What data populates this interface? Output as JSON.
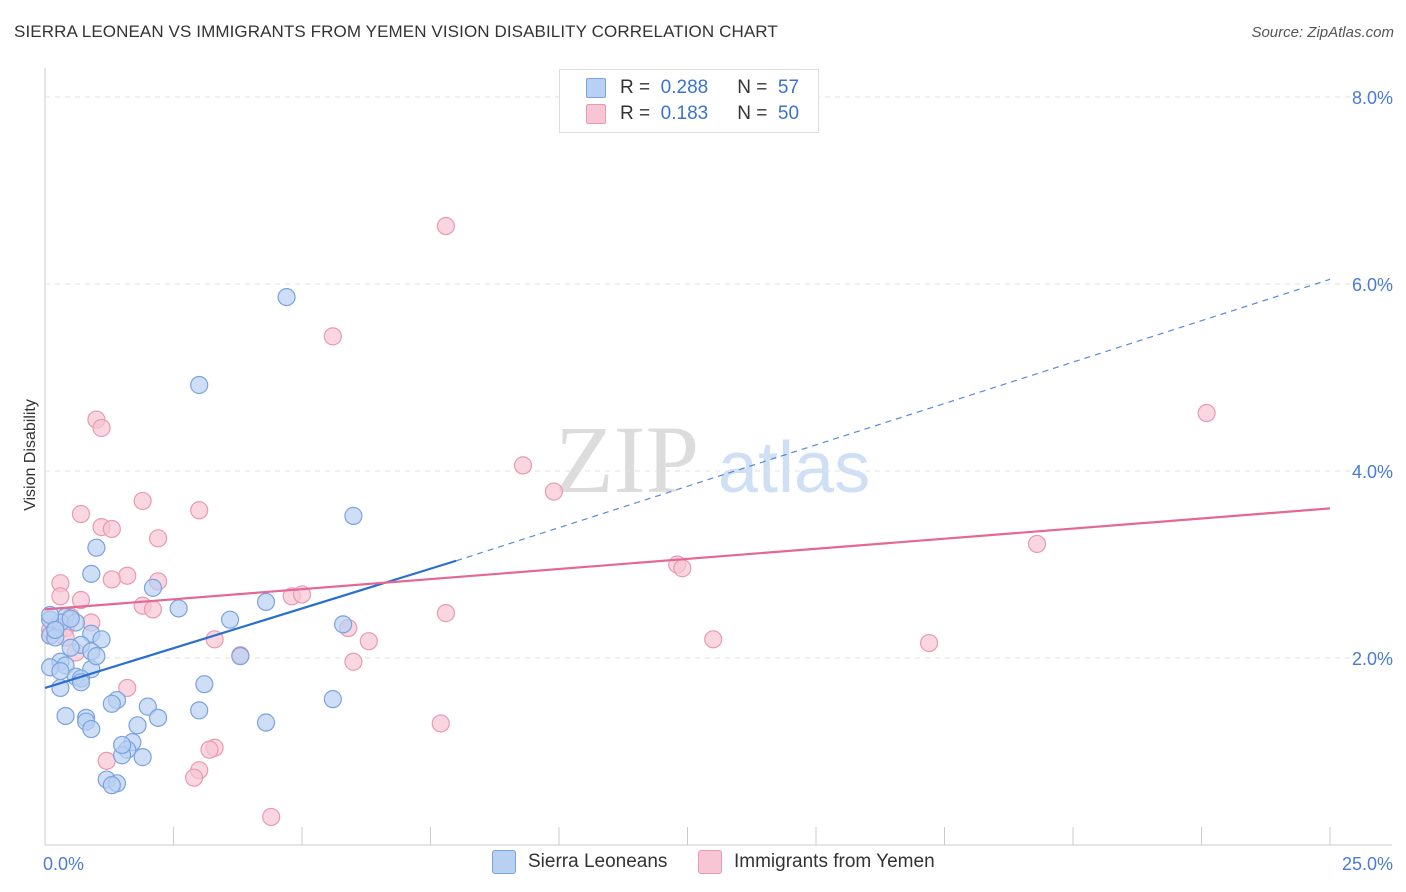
{
  "title": "SIERRA LEONEAN VS IMMIGRANTS FROM YEMEN VISION DISABILITY CORRELATION CHART",
  "source": "Source: ZipAtlas.com",
  "watermark": {
    "zip": "ZIP",
    "atlas": "atlas"
  },
  "legend": {
    "r_label": "R =",
    "n_label": "N =",
    "series1": {
      "r": "0.288",
      "n": "57"
    },
    "series2": {
      "r": "0.183",
      "n": "50"
    }
  },
  "colors": {
    "blue_fill": "#b8d0f2",
    "blue_stroke": "#7ba3de",
    "blue_line": "#2b6fce",
    "pink_fill": "#f7c5d3",
    "pink_stroke": "#e99ab3",
    "pink_line": "#e36894",
    "tick_text": "#4a7cd1"
  },
  "chart_data": {
    "type": "scatter",
    "title": "SIERRA LEONEAN VS IMMIGRANTS FROM YEMEN VISION DISABILITY CORRELATION CHART",
    "xlabel": "",
    "ylabel": "Vision Disability",
    "xlim": [
      0,
      25
    ],
    "ylim": [
      0,
      8.0
    ],
    "x_ticks": [
      {
        "value": 0,
        "label": "0.0%"
      },
      {
        "value": 25,
        "label": "25.0%"
      }
    ],
    "y_ticks": [
      {
        "value": 2,
        "label": "2.0%"
      },
      {
        "value": 4,
        "label": "4.0%"
      },
      {
        "value": 6,
        "label": "6.0%"
      },
      {
        "value": 8,
        "label": "8.0%"
      }
    ],
    "series": [
      {
        "name": "Sierra Leoneans",
        "r": 0.288,
        "n": 57,
        "trend": {
          "x0": 0,
          "y0": 1.68,
          "x1": 8.0,
          "y1": 3.04,
          "dash_to_x": 25,
          "dash_to_y": 6.05
        },
        "points": [
          [
            4.7,
            5.86
          ],
          [
            3.0,
            4.92
          ],
          [
            6.0,
            3.52
          ],
          [
            1.0,
            3.18
          ],
          [
            0.9,
            2.9
          ],
          [
            2.1,
            2.75
          ],
          [
            0.4,
            2.44
          ],
          [
            0.3,
            2.38
          ],
          [
            0.6,
            2.38
          ],
          [
            0.1,
            2.41
          ],
          [
            0.2,
            2.3
          ],
          [
            0.1,
            2.24
          ],
          [
            0.9,
            2.26
          ],
          [
            1.1,
            2.2
          ],
          [
            0.7,
            2.14
          ],
          [
            0.5,
            2.11
          ],
          [
            0.9,
            2.07
          ],
          [
            2.6,
            2.53
          ],
          [
            3.6,
            2.41
          ],
          [
            4.3,
            2.6
          ],
          [
            3.8,
            2.02
          ],
          [
            5.8,
            2.36
          ],
          [
            0.3,
            1.96
          ],
          [
            0.4,
            1.92
          ],
          [
            0.9,
            1.88
          ],
          [
            0.1,
            1.9
          ],
          [
            0.6,
            1.8
          ],
          [
            0.7,
            1.78
          ],
          [
            0.7,
            1.74
          ],
          [
            0.3,
            1.68
          ],
          [
            3.1,
            1.72
          ],
          [
            1.4,
            1.55
          ],
          [
            1.3,
            1.51
          ],
          [
            2.0,
            1.48
          ],
          [
            5.6,
            1.56
          ],
          [
            0.4,
            1.38
          ],
          [
            0.8,
            1.36
          ],
          [
            0.8,
            1.32
          ],
          [
            2.2,
            1.36
          ],
          [
            3.0,
            1.44
          ],
          [
            4.3,
            1.31
          ],
          [
            0.9,
            1.24
          ],
          [
            1.8,
            1.28
          ],
          [
            1.7,
            1.1
          ],
          [
            1.6,
            1.02
          ],
          [
            1.5,
            0.96
          ],
          [
            1.9,
            0.94
          ],
          [
            1.5,
            1.07
          ],
          [
            1.2,
            0.7
          ],
          [
            1.4,
            0.66
          ],
          [
            1.3,
            0.64
          ],
          [
            0.1,
            2.46
          ],
          [
            0.2,
            2.22
          ],
          [
            1.0,
            2.02
          ],
          [
            0.3,
            1.86
          ],
          [
            0.5,
            2.42
          ],
          [
            0.2,
            2.3
          ]
        ]
      },
      {
        "name": "Immigrants from Yemen",
        "r": 0.183,
        "n": 50,
        "trend": {
          "x0": 0,
          "y0": 2.52,
          "x1": 25,
          "y1": 3.6
        },
        "points": [
          [
            7.8,
            6.62
          ],
          [
            5.6,
            5.44
          ],
          [
            1.0,
            4.55
          ],
          [
            1.1,
            4.46
          ],
          [
            22.6,
            4.62
          ],
          [
            9.3,
            4.06
          ],
          [
            9.9,
            3.78
          ],
          [
            1.9,
            3.68
          ],
          [
            0.7,
            3.54
          ],
          [
            3.0,
            3.58
          ],
          [
            1.1,
            3.4
          ],
          [
            1.3,
            3.38
          ],
          [
            2.2,
            3.28
          ],
          [
            19.3,
            3.22
          ],
          [
            12.3,
            3.0
          ],
          [
            12.4,
            2.96
          ],
          [
            1.6,
            2.88
          ],
          [
            1.3,
            2.84
          ],
          [
            2.2,
            2.82
          ],
          [
            0.3,
            2.8
          ],
          [
            0.3,
            2.66
          ],
          [
            0.7,
            2.62
          ],
          [
            4.8,
            2.66
          ],
          [
            5.0,
            2.68
          ],
          [
            1.9,
            2.56
          ],
          [
            2.1,
            2.52
          ],
          [
            7.8,
            2.48
          ],
          [
            0.5,
            2.44
          ],
          [
            0.9,
            2.38
          ],
          [
            0.4,
            2.32
          ],
          [
            5.9,
            2.32
          ],
          [
            0.1,
            2.24
          ],
          [
            0.4,
            2.22
          ],
          [
            3.3,
            2.2
          ],
          [
            6.3,
            2.18
          ],
          [
            13.0,
            2.2
          ],
          [
            17.2,
            2.16
          ],
          [
            0.6,
            2.06
          ],
          [
            3.8,
            2.03
          ],
          [
            6.0,
            1.96
          ],
          [
            1.6,
            1.68
          ],
          [
            7.7,
            1.3
          ],
          [
            3.3,
            1.04
          ],
          [
            3.2,
            1.02
          ],
          [
            1.2,
            0.9
          ],
          [
            3.0,
            0.8
          ],
          [
            2.9,
            0.72
          ],
          [
            4.4,
            0.3
          ],
          [
            0.2,
            2.34
          ],
          [
            0.1,
            2.3
          ]
        ]
      }
    ]
  },
  "bottom_legend": {
    "series1": "Sierra Leoneans",
    "series2": "Immigrants from Yemen"
  }
}
